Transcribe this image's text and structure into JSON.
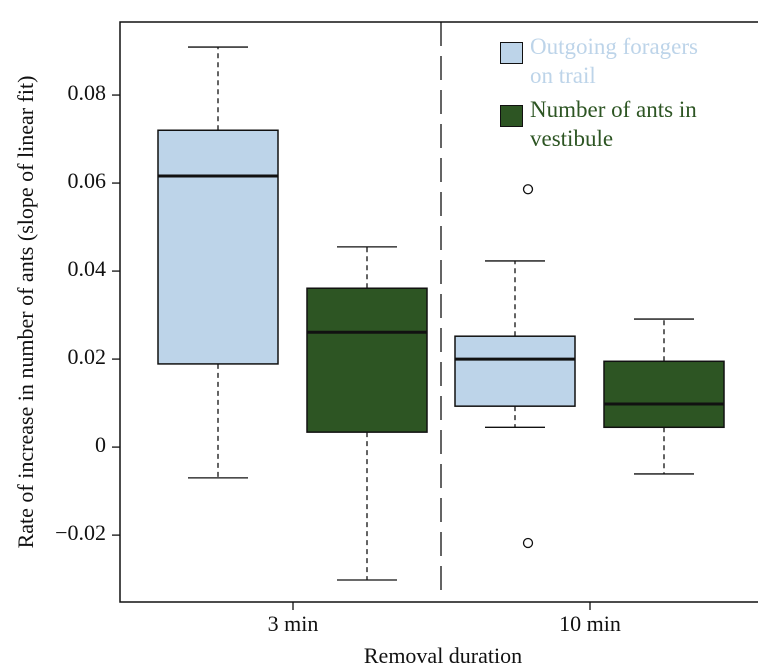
{
  "chart_data": {
    "type": "box",
    "x_label": "Removal duration",
    "y_label": "Rate of increase in number of ants (slope of linear fit)",
    "categories": [
      "3 min",
      "10 min"
    ],
    "series": [
      {
        "name": "Outgoing foragers on trail",
        "color": "#bdd4e9",
        "low": [
          -0.007,
          0.0045
        ],
        "q1": [
          0.0189,
          0.0093
        ],
        "median": [
          0.0616,
          0.02
        ],
        "q3": [
          0.072,
          0.0252
        ],
        "high": [
          0.0909,
          0.0423
        ],
        "outliers": [
          [],
          [
            0.0586,
            -0.0218
          ]
        ]
      },
      {
        "name": "Number of ants in vestibule",
        "color": "#2d5523",
        "low": [
          -0.0302,
          -0.0061
        ],
        "q1": [
          0.0034,
          0.0045
        ],
        "median": [
          0.0261,
          0.0098
        ],
        "q3": [
          0.0361,
          0.0195
        ],
        "high": [
          0.0455,
          0.0291
        ],
        "outliers": [
          [],
          []
        ]
      }
    ],
    "ylim": [
      -0.0352,
      0.0966
    ],
    "yticks": [
      {
        "value": -0.02,
        "label": "−0.02"
      },
      0,
      0.02,
      0.04,
      0.06,
      0.08
    ],
    "legend": "upper right"
  }
}
